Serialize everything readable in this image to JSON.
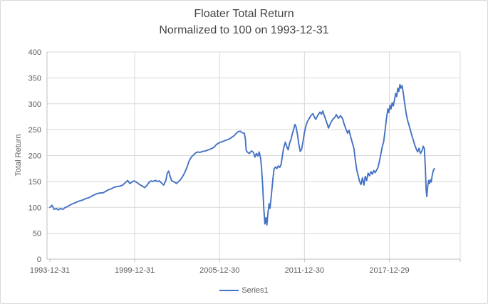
{
  "window": {
    "background": "#ffffff",
    "border_color": "#d9d9d9"
  },
  "colors": {
    "series_line": "#4472C4",
    "gridline": "#d9d9d9",
    "axis_line": "#bfbfbf",
    "tick_text": "#595959",
    "title_text": "#444444"
  },
  "chart_data": {
    "type": "line",
    "title": "Floater Total Return",
    "subtitle": "Normalized to 100 on 1993-12-31",
    "xlabel": "",
    "ylabel": "Total Return",
    "grid": true,
    "y_axis": {
      "min": 0,
      "max": 400,
      "step": 50,
      "tick_labels": [
        "0",
        "50",
        "100",
        "150",
        "200",
        "250",
        "300",
        "350",
        "400"
      ]
    },
    "x_axis": {
      "unit": "years since 1993-12-31",
      "tick_positions_years": [
        0,
        6,
        12,
        18,
        24
      ],
      "tick_labels": [
        "1993-12-31",
        "1999-12-31",
        "2005-12-30",
        "2011-12-30",
        "2017-12-29"
      ],
      "max_years": 29
    },
    "legend": {
      "position": "bottom-center",
      "entries": [
        {
          "label": "Series1",
          "color": "#4472C4"
        }
      ]
    },
    "series": [
      {
        "name": "Series1",
        "color": "#4472C4",
        "x_unit": "years since 1993-12-31",
        "points": [
          [
            0,
            100
          ],
          [
            0.15,
            104
          ],
          [
            0.3,
            96
          ],
          [
            0.45,
            98
          ],
          [
            0.6,
            95
          ],
          [
            0.75,
            98
          ],
          [
            0.9,
            96
          ],
          [
            1.05,
            99
          ],
          [
            1.2,
            101
          ],
          [
            1.4,
            104
          ],
          [
            1.6,
            107
          ],
          [
            1.8,
            109
          ],
          [
            2.05,
            112
          ],
          [
            2.3,
            114
          ],
          [
            2.55,
            117
          ],
          [
            2.8,
            119
          ],
          [
            3.05,
            123
          ],
          [
            3.3,
            126
          ],
          [
            3.55,
            128
          ],
          [
            3.75,
            128
          ],
          [
            3.95,
            131
          ],
          [
            4.15,
            134
          ],
          [
            4.35,
            136
          ],
          [
            4.55,
            139
          ],
          [
            4.75,
            140
          ],
          [
            4.95,
            141
          ],
          [
            5.15,
            143
          ],
          [
            5.35,
            148
          ],
          [
            5.5,
            152
          ],
          [
            5.65,
            146
          ],
          [
            5.8,
            149
          ],
          [
            5.95,
            151
          ],
          [
            6.1,
            149
          ],
          [
            6.25,
            146
          ],
          [
            6.4,
            143
          ],
          [
            6.55,
            141
          ],
          [
            6.7,
            138
          ],
          [
            6.85,
            142
          ],
          [
            7.0,
            148
          ],
          [
            7.15,
            151
          ],
          [
            7.3,
            150
          ],
          [
            7.45,
            152
          ],
          [
            7.6,
            150
          ],
          [
            7.75,
            151
          ],
          [
            7.9,
            147
          ],
          [
            8.05,
            143
          ],
          [
            8.2,
            152
          ],
          [
            8.3,
            166
          ],
          [
            8.4,
            170
          ],
          [
            8.5,
            160
          ],
          [
            8.6,
            152
          ],
          [
            8.72,
            150
          ],
          [
            8.85,
            148
          ],
          [
            8.95,
            146
          ],
          [
            9.1,
            150
          ],
          [
            9.25,
            154
          ],
          [
            9.4,
            160
          ],
          [
            9.55,
            168
          ],
          [
            9.7,
            178
          ],
          [
            9.85,
            190
          ],
          [
            10.0,
            197
          ],
          [
            10.15,
            201
          ],
          [
            10.3,
            205
          ],
          [
            10.45,
            207
          ],
          [
            10.6,
            206
          ],
          [
            10.8,
            208
          ],
          [
            11.0,
            209
          ],
          [
            11.2,
            211
          ],
          [
            11.4,
            213
          ],
          [
            11.6,
            216
          ],
          [
            11.8,
            222
          ],
          [
            12.0,
            225
          ],
          [
            12.2,
            227
          ],
          [
            12.4,
            229
          ],
          [
            12.6,
            231
          ],
          [
            12.8,
            234
          ],
          [
            13.0,
            238
          ],
          [
            13.15,
            242
          ],
          [
            13.3,
            246
          ],
          [
            13.45,
            247
          ],
          [
            13.6,
            244
          ],
          [
            13.75,
            243
          ],
          [
            13.82,
            232
          ],
          [
            13.88,
            210
          ],
          [
            13.95,
            207
          ],
          [
            14.1,
            204
          ],
          [
            14.25,
            209
          ],
          [
            14.4,
            206
          ],
          [
            14.5,
            197
          ],
          [
            14.6,
            204
          ],
          [
            14.7,
            199
          ],
          [
            14.8,
            207
          ],
          [
            14.9,
            195
          ],
          [
            14.97,
            175
          ],
          [
            15.05,
            140
          ],
          [
            15.12,
            100
          ],
          [
            15.2,
            68
          ],
          [
            15.27,
            80
          ],
          [
            15.34,
            66
          ],
          [
            15.42,
            90
          ],
          [
            15.5,
            107
          ],
          [
            15.56,
            98
          ],
          [
            15.63,
            115
          ],
          [
            15.7,
            135
          ],
          [
            15.77,
            155
          ],
          [
            15.85,
            174
          ],
          [
            15.95,
            178
          ],
          [
            16.05,
            175
          ],
          [
            16.15,
            180
          ],
          [
            16.25,
            177
          ],
          [
            16.35,
            183
          ],
          [
            16.42,
            196
          ],
          [
            16.5,
            210
          ],
          [
            16.57,
            219
          ],
          [
            16.65,
            226
          ],
          [
            16.75,
            217
          ],
          [
            16.85,
            211
          ],
          [
            16.95,
            224
          ],
          [
            17.05,
            231
          ],
          [
            17.15,
            243
          ],
          [
            17.25,
            252
          ],
          [
            17.32,
            260
          ],
          [
            17.4,
            256
          ],
          [
            17.5,
            242
          ],
          [
            17.6,
            222
          ],
          [
            17.7,
            208
          ],
          [
            17.8,
            212
          ],
          [
            17.9,
            228
          ],
          [
            18.0,
            245
          ],
          [
            18.1,
            257
          ],
          [
            18.2,
            265
          ],
          [
            18.3,
            270
          ],
          [
            18.45,
            277
          ],
          [
            18.6,
            281
          ],
          [
            18.7,
            274
          ],
          [
            18.8,
            270
          ],
          [
            18.95,
            278
          ],
          [
            19.1,
            284
          ],
          [
            19.2,
            280
          ],
          [
            19.3,
            286
          ],
          [
            19.4,
            277
          ],
          [
            19.55,
            266
          ],
          [
            19.7,
            253
          ],
          [
            19.85,
            263
          ],
          [
            20.0,
            270
          ],
          [
            20.15,
            274
          ],
          [
            20.25,
            279
          ],
          [
            20.4,
            272
          ],
          [
            20.55,
            277
          ],
          [
            20.7,
            271
          ],
          [
            20.8,
            261
          ],
          [
            20.95,
            250
          ],
          [
            21.05,
            243
          ],
          [
            21.15,
            249
          ],
          [
            21.25,
            238
          ],
          [
            21.35,
            228
          ],
          [
            21.5,
            213
          ],
          [
            21.6,
            190
          ],
          [
            21.7,
            172
          ],
          [
            21.8,
            161
          ],
          [
            21.9,
            150
          ],
          [
            22.0,
            144
          ],
          [
            22.1,
            157
          ],
          [
            22.2,
            143
          ],
          [
            22.3,
            160
          ],
          [
            22.4,
            152
          ],
          [
            22.5,
            166
          ],
          [
            22.6,
            161
          ],
          [
            22.7,
            169
          ],
          [
            22.8,
            164
          ],
          [
            22.9,
            171
          ],
          [
            23.0,
            167
          ],
          [
            23.1,
            172
          ],
          [
            23.2,
            177
          ],
          [
            23.3,
            189
          ],
          [
            23.4,
            203
          ],
          [
            23.5,
            217
          ],
          [
            23.6,
            227
          ],
          [
            23.7,
            248
          ],
          [
            23.8,
            272
          ],
          [
            23.9,
            290
          ],
          [
            23.97,
            283
          ],
          [
            24.05,
            297
          ],
          [
            24.12,
            290
          ],
          [
            24.2,
            302
          ],
          [
            24.28,
            296
          ],
          [
            24.37,
            308
          ],
          [
            24.45,
            320
          ],
          [
            24.52,
            314
          ],
          [
            24.6,
            330
          ],
          [
            24.67,
            324
          ],
          [
            24.75,
            337
          ],
          [
            24.82,
            330
          ],
          [
            24.9,
            335
          ],
          [
            25.0,
            318
          ],
          [
            25.1,
            298
          ],
          [
            25.2,
            280
          ],
          [
            25.3,
            267
          ],
          [
            25.4,
            258
          ],
          [
            25.5,
            248
          ],
          [
            25.6,
            238
          ],
          [
            25.7,
            229
          ],
          [
            25.8,
            220
          ],
          [
            25.9,
            213
          ],
          [
            26.0,
            207
          ],
          [
            26.1,
            214
          ],
          [
            26.2,
            204
          ],
          [
            26.3,
            209
          ],
          [
            26.4,
            218
          ],
          [
            26.48,
            213
          ],
          [
            26.55,
            175
          ],
          [
            26.6,
            135
          ],
          [
            26.65,
            121
          ],
          [
            26.72,
            142
          ],
          [
            26.78,
            152
          ],
          [
            26.84,
            146
          ],
          [
            26.9,
            153
          ],
          [
            26.96,
            149
          ],
          [
            27.02,
            160
          ],
          [
            27.1,
            170
          ],
          [
            27.18,
            175
          ]
        ]
      }
    ]
  }
}
